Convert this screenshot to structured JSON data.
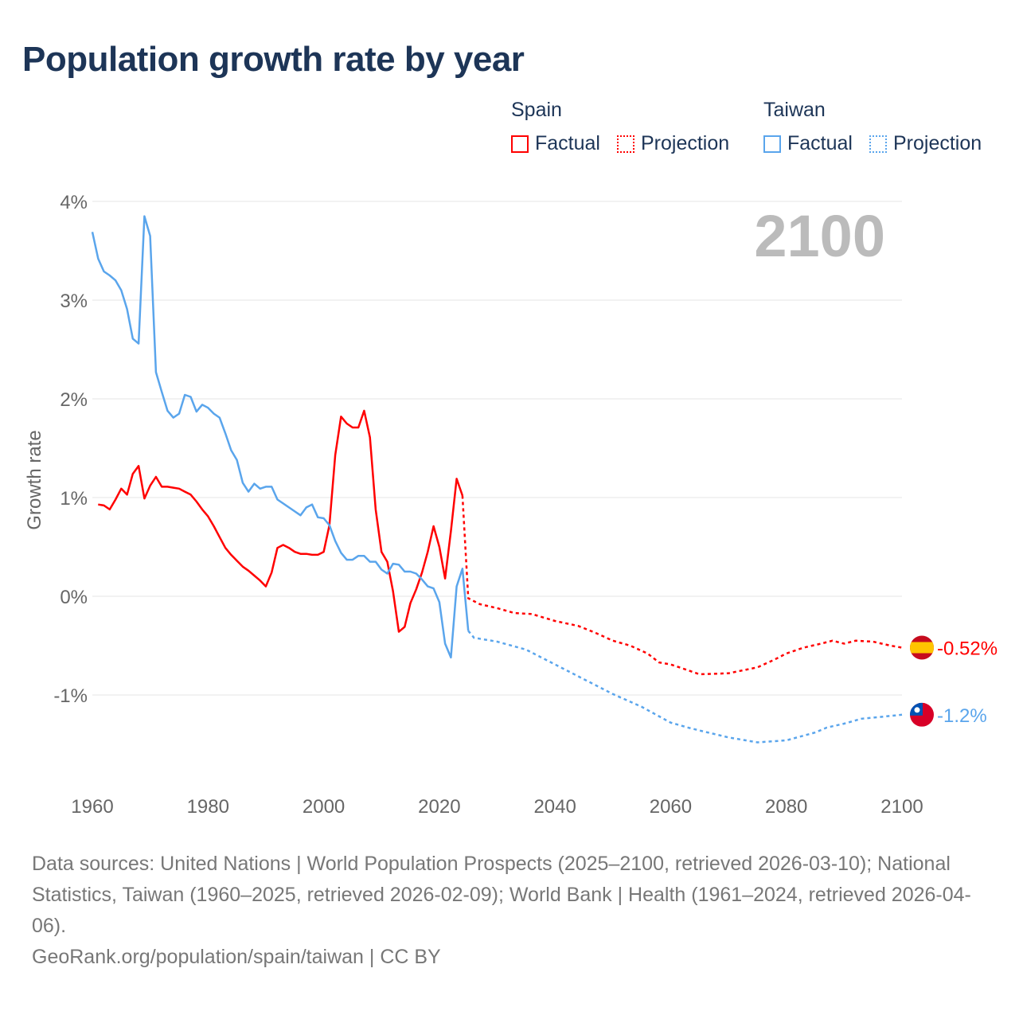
{
  "title": "Population growth rate by year",
  "year_display": "2100",
  "legend": {
    "groups": [
      {
        "name": "Spain",
        "color": "#ff0000",
        "factual": "Factual",
        "projection": "Projection"
      },
      {
        "name": "Taiwan",
        "color": "#5aa5ec",
        "factual": "Factual",
        "projection": "Projection"
      }
    ]
  },
  "footer": {
    "sources": "Data sources: United Nations | World Population Prospects (2025–2100, retrieved 2026-03-10); National Statistics, Taiwan (1960–2025, retrieved 2026-02-09); World Bank | Health (1961–2024, retrieved 2026-04-06).",
    "credit": "GeoRank.org/population/spain/taiwan | CC BY"
  },
  "chart_data": {
    "type": "line",
    "title": "Population growth rate by year",
    "xlabel": "",
    "ylabel": "Growth rate",
    "xlim": [
      1960,
      2100
    ],
    "ylim": [
      -1.9,
      4.05
    ],
    "xticks": [
      1960,
      1980,
      2000,
      2020,
      2040,
      2060,
      2080,
      2100
    ],
    "yticks": [
      -1,
      0,
      1,
      2,
      3,
      4
    ],
    "ytick_labels": [
      "-1%",
      "0%",
      "1%",
      "2%",
      "3%",
      "4%"
    ],
    "grid": true,
    "legend_position": "top-right",
    "series": [
      {
        "name": "Spain",
        "color": "#ff0000",
        "end_label": "-0.52%",
        "factual": {
          "x": [
            1961,
            1962,
            1963,
            1964,
            1965,
            1966,
            1967,
            1968,
            1969,
            1970,
            1971,
            1972,
            1973,
            1974,
            1975,
            1976,
            1977,
            1978,
            1979,
            1980,
            1981,
            1982,
            1983,
            1984,
            1985,
            1986,
            1987,
            1988,
            1989,
            1990,
            1991,
            1992,
            1993,
            1994,
            1995,
            1996,
            1997,
            1998,
            1999,
            2000,
            2001,
            2002,
            2003,
            2004,
            2005,
            2006,
            2007,
            2008,
            2009,
            2010,
            2011,
            2012,
            2013,
            2014,
            2015,
            2016,
            2017,
            2018,
            2019,
            2020,
            2021,
            2022,
            2023,
            2024
          ],
          "y": [
            0.93,
            0.92,
            0.88,
            0.98,
            1.09,
            1.03,
            1.24,
            1.32,
            0.99,
            1.12,
            1.21,
            1.11,
            1.11,
            1.1,
            1.09,
            1.06,
            1.03,
            0.96,
            0.88,
            0.81,
            0.71,
            0.6,
            0.49,
            0.42,
            0.36,
            0.3,
            0.26,
            0.21,
            0.16,
            0.1,
            0.24,
            0.49,
            0.52,
            0.49,
            0.45,
            0.43,
            0.43,
            0.42,
            0.42,
            0.45,
            0.72,
            1.43,
            1.82,
            1.75,
            1.71,
            1.71,
            1.88,
            1.61,
            0.88,
            0.45,
            0.35,
            0.05,
            -0.36,
            -0.31,
            -0.07,
            0.07,
            0.24,
            0.45,
            0.71,
            0.5,
            0.18,
            0.66,
            1.19,
            1.02
          ]
        },
        "projection": {
          "x": [
            2024,
            2025,
            2027,
            2030,
            2033,
            2036,
            2040,
            2044,
            2047,
            2050,
            2053,
            2056,
            2058,
            2060,
            2062,
            2065,
            2070,
            2075,
            2078,
            2080,
            2083,
            2086,
            2088,
            2090,
            2092,
            2095,
            2098,
            2100
          ],
          "y": [
            1.02,
            -0.02,
            -0.08,
            -0.12,
            -0.17,
            -0.18,
            -0.25,
            -0.3,
            -0.37,
            -0.45,
            -0.5,
            -0.58,
            -0.67,
            -0.69,
            -0.73,
            -0.79,
            -0.78,
            -0.72,
            -0.64,
            -0.58,
            -0.52,
            -0.48,
            -0.45,
            -0.48,
            -0.45,
            -0.46,
            -0.5,
            -0.52
          ]
        }
      },
      {
        "name": "Taiwan",
        "color": "#5aa5ec",
        "end_label": "-1.2%",
        "factual": {
          "x": [
            1960,
            1961,
            1962,
            1963,
            1964,
            1965,
            1966,
            1967,
            1968,
            1969,
            1970,
            1971,
            1972,
            1973,
            1974,
            1975,
            1976,
            1977,
            1978,
            1979,
            1980,
            1981,
            1982,
            1983,
            1984,
            1985,
            1986,
            1987,
            1988,
            1989,
            1990,
            1991,
            1992,
            1993,
            1994,
            1995,
            1996,
            1997,
            1998,
            1999,
            2000,
            2001,
            2002,
            2003,
            2004,
            2005,
            2006,
            2007,
            2008,
            2009,
            2010,
            2011,
            2012,
            2013,
            2014,
            2015,
            2016,
            2017,
            2018,
            2019,
            2020,
            2021,
            2022,
            2023,
            2024,
            2025
          ],
          "y": [
            3.69,
            3.42,
            3.29,
            3.25,
            3.2,
            3.1,
            2.91,
            2.61,
            2.56,
            3.85,
            3.65,
            2.27,
            2.07,
            1.88,
            1.81,
            1.85,
            2.04,
            2.02,
            1.87,
            1.94,
            1.91,
            1.85,
            1.81,
            1.65,
            1.48,
            1.38,
            1.15,
            1.06,
            1.14,
            1.09,
            1.11,
            1.11,
            0.98,
            0.94,
            0.9,
            0.86,
            0.82,
            0.9,
            0.93,
            0.8,
            0.79,
            0.72,
            0.56,
            0.44,
            0.37,
            0.37,
            0.41,
            0.41,
            0.35,
            0.35,
            0.27,
            0.23,
            0.33,
            0.32,
            0.25,
            0.25,
            0.23,
            0.17,
            0.1,
            0.08,
            -0.06,
            -0.48,
            -0.62,
            0.1,
            0.28,
            -0.35
          ]
        },
        "projection": {
          "x": [
            2025,
            2026,
            2030,
            2035,
            2040,
            2045,
            2050,
            2055,
            2060,
            2063,
            2065,
            2070,
            2075,
            2080,
            2085,
            2087,
            2090,
            2093,
            2095,
            2100
          ],
          "y": [
            -0.35,
            -0.42,
            -0.46,
            -0.54,
            -0.69,
            -0.84,
            -0.99,
            -1.12,
            -1.28,
            -1.33,
            -1.36,
            -1.43,
            -1.48,
            -1.46,
            -1.38,
            -1.33,
            -1.29,
            -1.24,
            -1.23,
            -1.2
          ]
        }
      }
    ]
  }
}
